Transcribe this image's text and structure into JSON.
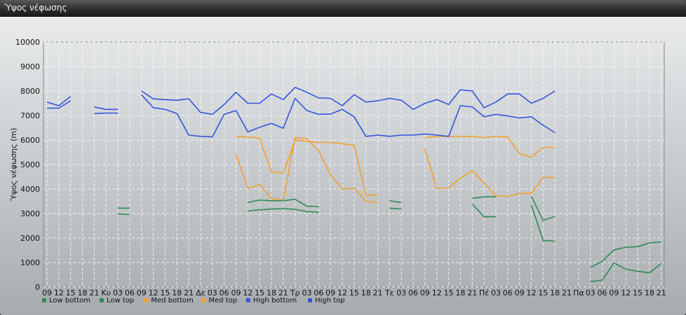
{
  "window": {
    "title": "Ύψος νέφωσης"
  },
  "chart_data": {
    "type": "line",
    "title": "",
    "xlabel": "",
    "ylabel": "Ύψος νέφωσης (m)",
    "ylim": [
      0,
      10000
    ],
    "yticks": [
      0,
      1000,
      2000,
      3000,
      4000,
      5000,
      6000,
      7000,
      8000,
      9000,
      10000
    ],
    "grid": true,
    "legend_position": "bottom-left",
    "x_tick_labels": [
      "09",
      "12",
      "15",
      "18",
      "21",
      "Κυ",
      "03",
      "06",
      "09",
      "12",
      "15",
      "18",
      "21",
      "Δε",
      "03",
      "06",
      "09",
      "12",
      "15",
      "18",
      "21",
      "Τρ",
      "03",
      "06",
      "09",
      "12",
      "15",
      "18",
      "21",
      "Τε",
      "03",
      "06",
      "09",
      "12",
      "15",
      "18",
      "21",
      "Πέ",
      "03",
      "06",
      "09",
      "12",
      "15",
      "18",
      "21",
      "Πα",
      "03",
      "06",
      "09",
      "12",
      "15",
      "18",
      "21"
    ],
    "series": [
      {
        "name": "Low bottom",
        "color": "#2e8b57",
        "values": [
          null,
          null,
          null,
          null,
          null,
          null,
          null,
          null,
          null,
          null,
          null,
          null,
          null,
          null,
          null,
          null,
          null,
          null,
          null,
          null,
          null,
          null,
          null,
          null,
          null,
          null,
          null,
          null,
          null,
          null,
          null,
          null,
          null,
          null,
          null,
          null,
          null,
          null,
          null,
          null,
          null,
          null,
          null,
          null,
          null,
          null,
          null,
          null,
          null,
          null,
          null,
          null,
          null,
          null,
          null,
          null,
          null,
          null,
          null,
          null,
          null,
          null,
          null,
          null,
          null,
          null,
          null,
          null,
          null,
          null,
          null,
          null,
          null,
          null
        ]
      },
      {
        "name": "Low top",
        "color": "#2e8b57",
        "values": []
      },
      {
        "name": "Med bottom",
        "color": "#f0a030",
        "values": []
      },
      {
        "name": "Med top",
        "color": "#f0a030",
        "values": []
      },
      {
        "name": "High bottom",
        "color": "#3355dd",
        "values": []
      },
      {
        "name": "High top",
        "color": "#3355dd",
        "values": []
      }
    ]
  }
}
